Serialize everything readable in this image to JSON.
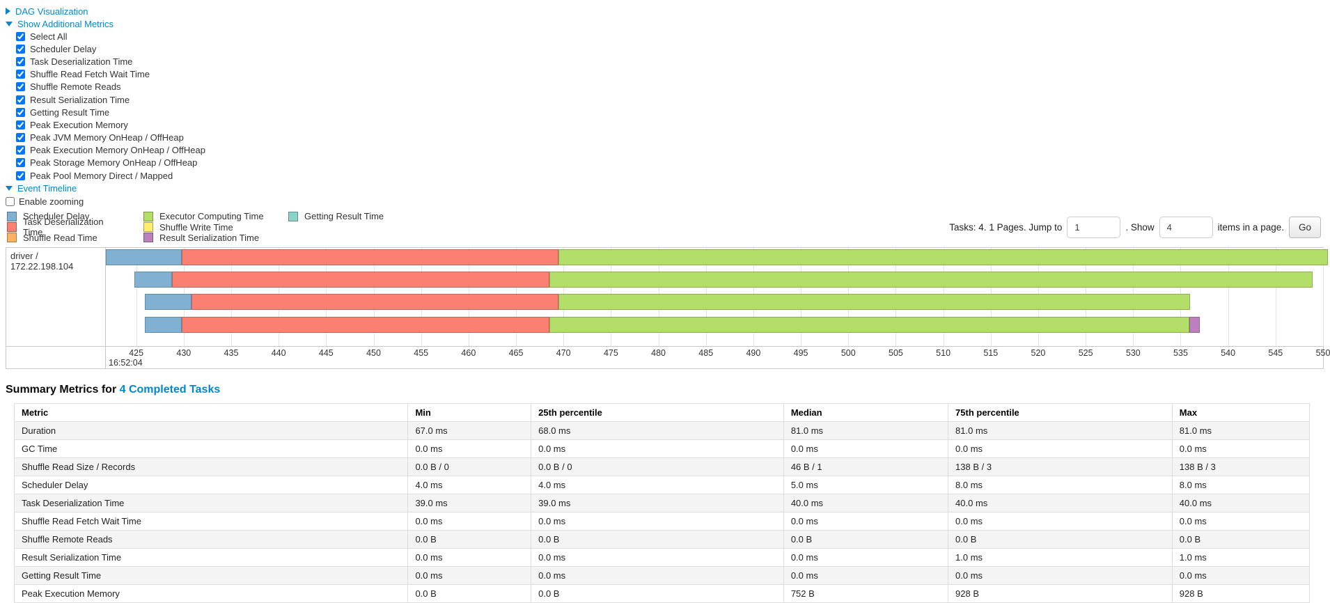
{
  "accordion": {
    "dag": {
      "label": "DAG Visualization",
      "collapsed": true
    },
    "metrics": {
      "label": "Show Additional Metrics",
      "collapsed": false
    },
    "timeline": {
      "label": "Event Timeline",
      "collapsed": false
    }
  },
  "metrics_panel": {
    "items": [
      {
        "label": "Select All",
        "checked": true
      },
      {
        "label": "Scheduler Delay",
        "checked": true
      },
      {
        "label": "Task Deserialization Time",
        "checked": true
      },
      {
        "label": "Shuffle Read Fetch Wait Time",
        "checked": true
      },
      {
        "label": "Shuffle Remote Reads",
        "checked": true
      },
      {
        "label": "Result Serialization Time",
        "checked": true
      },
      {
        "label": "Getting Result Time",
        "checked": true
      },
      {
        "label": "Peak Execution Memory",
        "checked": true
      },
      {
        "label": "Peak JVM Memory OnHeap / OffHeap",
        "checked": true
      },
      {
        "label": "Peak Execution Memory OnHeap / OffHeap",
        "checked": true
      },
      {
        "label": "Peak Storage Memory OnHeap / OffHeap",
        "checked": true
      },
      {
        "label": "Peak Pool Memory Direct / Mapped",
        "checked": true
      }
    ]
  },
  "enable_zooming": {
    "label": "Enable zooming",
    "checked": false
  },
  "legend": {
    "columns": [
      [
        {
          "label": "Scheduler Delay",
          "color": "#80B1D3"
        },
        {
          "label": "Task Deserialization Time",
          "color": "#FB8072"
        },
        {
          "label": "Shuffle Read Time",
          "color": "#FDB462"
        }
      ],
      [
        {
          "label": "Executor Computing Time",
          "color": "#B3DE69"
        },
        {
          "label": "Shuffle Write Time",
          "color": "#FFED6F"
        },
        {
          "label": "Result Serialization Time",
          "color": "#BC80BD"
        }
      ],
      [
        {
          "label": "Getting Result Time",
          "color": "#8DD3C7"
        }
      ]
    ]
  },
  "pagination": {
    "summary": "Tasks: 4. 1 Pages. Jump to",
    "jump_value": "1",
    "show_label": ". Show",
    "show_value": "4",
    "suffix": "items in a page.",
    "go_label": "Go"
  },
  "chart_data": {
    "type": "gantt-timeline",
    "group_label": "driver / 172.22.198.104",
    "axis": {
      "min": 421.8,
      "max": 550.0,
      "ticks": [
        425,
        430,
        435,
        440,
        445,
        450,
        455,
        460,
        465,
        470,
        475,
        480,
        485,
        490,
        495,
        500,
        505,
        510,
        515,
        520,
        525,
        530,
        535,
        540,
        545,
        550
      ],
      "start_time_label": "16:52:04",
      "unit": "ms within second 16:52:04"
    },
    "series_colors": {
      "scheduler_delay": "#80B1D3",
      "task_deserialization": "#FB8072",
      "shuffle_read": "#FDB462",
      "executor_computing": "#B3DE69",
      "shuffle_write": "#FFED6F",
      "result_serialization": "#BC80BD",
      "getting_result": "#8DD3C7"
    },
    "tasks": [
      {
        "segments": [
          {
            "type": "scheduler_delay",
            "start": 421.8,
            "end": 429.8
          },
          {
            "type": "task_deserialization",
            "start": 429.8,
            "end": 469.5
          },
          {
            "type": "executor_computing",
            "start": 469.5,
            "end": 550.5
          }
        ]
      },
      {
        "segments": [
          {
            "type": "scheduler_delay",
            "start": 424.8,
            "end": 428.8
          },
          {
            "type": "task_deserialization",
            "start": 428.8,
            "end": 468.5
          },
          {
            "type": "executor_computing",
            "start": 468.5,
            "end": 548.9
          }
        ]
      },
      {
        "segments": [
          {
            "type": "scheduler_delay",
            "start": 425.9,
            "end": 430.8
          },
          {
            "type": "task_deserialization",
            "start": 430.8,
            "end": 469.5
          },
          {
            "type": "executor_computing",
            "start": 469.5,
            "end": 536.0
          }
        ]
      },
      {
        "segments": [
          {
            "type": "scheduler_delay",
            "start": 425.9,
            "end": 429.8
          },
          {
            "type": "task_deserialization",
            "start": 429.8,
            "end": 468.5
          },
          {
            "type": "executor_computing",
            "start": 468.5,
            "end": 535.9
          },
          {
            "type": "result_serialization",
            "start": 535.9,
            "end": 537.0
          }
        ]
      }
    ]
  },
  "summary": {
    "title_prefix": "Summary Metrics for ",
    "title_link": "4 Completed Tasks",
    "columns": [
      "Metric",
      "Min",
      "25th percentile",
      "Median",
      "75th percentile",
      "Max"
    ],
    "rows": [
      [
        "Duration",
        "67.0 ms",
        "68.0 ms",
        "81.0 ms",
        "81.0 ms",
        "81.0 ms"
      ],
      [
        "GC Time",
        "0.0 ms",
        "0.0 ms",
        "0.0 ms",
        "0.0 ms",
        "0.0 ms"
      ],
      [
        "Shuffle Read Size / Records",
        "0.0 B / 0",
        "0.0 B / 0",
        "46 B / 1",
        "138 B / 3",
        "138 B / 3"
      ],
      [
        "Scheduler Delay",
        "4.0 ms",
        "4.0 ms",
        "5.0 ms",
        "8.0 ms",
        "8.0 ms"
      ],
      [
        "Task Deserialization Time",
        "39.0 ms",
        "39.0 ms",
        "40.0 ms",
        "40.0 ms",
        "40.0 ms"
      ],
      [
        "Shuffle Read Fetch Wait Time",
        "0.0 ms",
        "0.0 ms",
        "0.0 ms",
        "0.0 ms",
        "0.0 ms"
      ],
      [
        "Shuffle Remote Reads",
        "0.0 B",
        "0.0 B",
        "0.0 B",
        "0.0 B",
        "0.0 B"
      ],
      [
        "Result Serialization Time",
        "0.0 ms",
        "0.0 ms",
        "0.0 ms",
        "1.0 ms",
        "1.0 ms"
      ],
      [
        "Getting Result Time",
        "0.0 ms",
        "0.0 ms",
        "0.0 ms",
        "0.0 ms",
        "0.0 ms"
      ],
      [
        "Peak Execution Memory",
        "0.0 B",
        "0.0 B",
        "752 B",
        "928 B",
        "928 B"
      ]
    ]
  }
}
